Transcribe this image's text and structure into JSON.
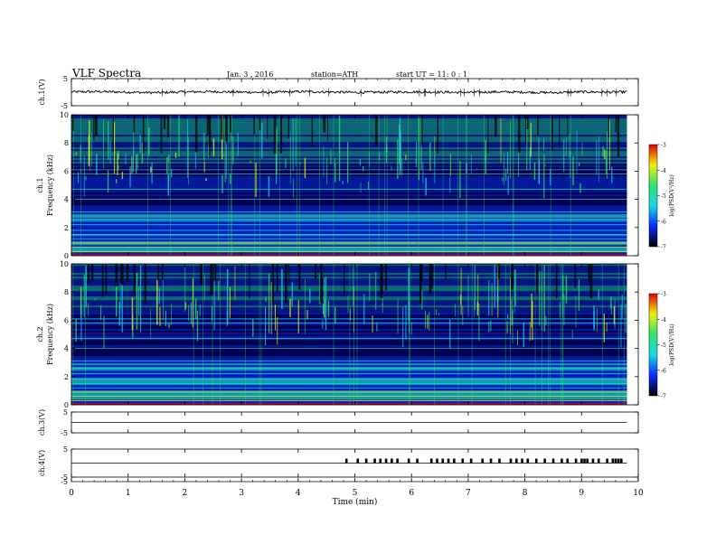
{
  "header": {
    "title": "VLF  Spectra",
    "date": "Jan.  3  ,  2016",
    "station": "station=ATH",
    "start": "start  UT  =    11: 0  : 1"
  },
  "colors": {
    "spec_bg": "#000010",
    "spec_dark": "#000080",
    "spec_blue": "#0a2cff",
    "spec_cyan": "#1ad6e8",
    "spec_green": "#2fe46a",
    "spec_yellow": "#f0f010",
    "spec_red": "#e00000",
    "trace": "#000000"
  },
  "chart_data": [
    {
      "type": "line",
      "panel": "ch1-waveform",
      "ylabel": "ch.1(V)",
      "ylim": [
        -5,
        5
      ],
      "yticks": [
        "5",
        "-5"
      ],
      "xlim": [
        0,
        10
      ],
      "x": [
        0.0,
        0.5,
        1.0,
        1.5,
        2.0,
        2.5,
        3.0,
        3.5,
        4.0,
        4.5,
        5.0,
        5.5,
        6.0,
        6.5,
        7.0,
        7.5,
        8.0,
        8.5,
        9.0,
        9.5,
        9.8
      ],
      "y": [
        0.1,
        0.2,
        0.0,
        -0.2,
        0.1,
        0.2,
        0.0,
        -0.1,
        0.2,
        0.1,
        -0.1,
        0.0,
        0.1,
        0.0,
        -0.1,
        0.1,
        0.0,
        -0.2,
        0.1,
        0.0,
        0.1
      ]
    },
    {
      "type": "heatmap",
      "panel": "ch1-spectrogram",
      "ylabel": "ch.1",
      "ylabel2": "Frequency  (kHz)",
      "ylim": [
        0,
        10
      ],
      "yticks": [
        "0",
        "2",
        "4",
        "6",
        "8",
        "10"
      ],
      "xlim": [
        0,
        9.8
      ],
      "colorbar": {
        "label": "log(PSD(V²/Hz)",
        "range": [
          -7,
          -3
        ],
        "ticks": [
          "-3",
          "-4",
          "-5",
          "-6",
          "-7"
        ]
      }
    },
    {
      "type": "heatmap",
      "panel": "ch2-spectrogram",
      "ylabel": "ch.2",
      "ylabel2": "Frequency  (kHz)",
      "ylim": [
        0,
        10
      ],
      "yticks": [
        "0",
        "2",
        "4",
        "6",
        "8",
        "10"
      ],
      "xlim": [
        0,
        9.8
      ],
      "colorbar": {
        "label": "log(PSD(V²/Hz)",
        "range": [
          -7,
          -3
        ],
        "ticks": [
          "-3",
          "-4",
          "-5",
          "-6",
          "-7"
        ]
      }
    },
    {
      "type": "line",
      "panel": "ch3-waveform",
      "ylabel": "ch.3(V)",
      "ylim": [
        -5,
        5
      ],
      "yticks": [
        "5",
        "-5"
      ],
      "xlim": [
        0,
        10
      ],
      "x": [
        0,
        9.8
      ],
      "y": [
        0,
        0
      ]
    },
    {
      "type": "line",
      "panel": "ch4-waveform",
      "ylabel": "ch.4(V)",
      "ylim": [
        -5,
        5
      ],
      "yticks": [
        "5",
        "-5"
      ],
      "xlim": [
        0,
        10
      ],
      "x": [
        0,
        9.8
      ],
      "y": [
        0,
        0
      ],
      "pulses_x": [
        4.85,
        5.05,
        5.2,
        5.35,
        5.45,
        5.55,
        5.65,
        5.75,
        5.95,
        6.1,
        6.35,
        6.45,
        6.55,
        6.65,
        6.75,
        6.9,
        7.05,
        7.25,
        7.4,
        7.55,
        7.75,
        7.85,
        7.95,
        8.05,
        8.2,
        8.35,
        8.5,
        8.65,
        8.75,
        8.9,
        9.0,
        9.05,
        9.1,
        9.2,
        9.3,
        9.45,
        9.55,
        9.6,
        9.65,
        9.7
      ]
    }
  ],
  "xaxis": {
    "label": "Time  (min)",
    "ticks": [
      "0",
      "1",
      "2",
      "3",
      "4",
      "5",
      "6",
      "7",
      "8",
      "9",
      "10"
    ],
    "range": [
      0,
      10
    ]
  }
}
